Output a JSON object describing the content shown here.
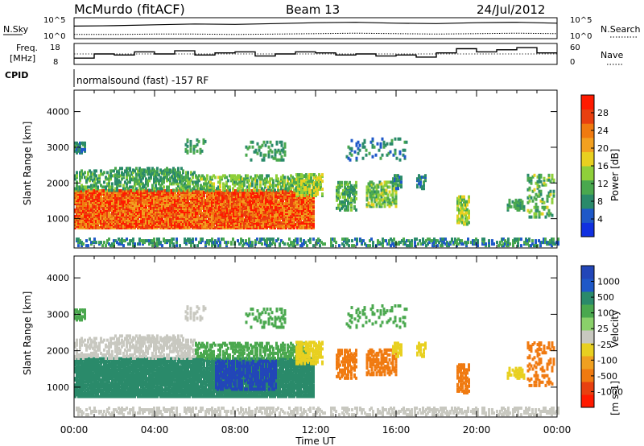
{
  "header": {
    "station": "McMurdo (fitACF)",
    "beam": "Beam 13",
    "date": "24/Jul/2012"
  },
  "panels": {
    "nsky_label": "N.Sky",
    "nsky_top": "10^5",
    "nsky_bottom": "10^0",
    "nsearch_label": "N.Search",
    "nsearch_top": "10^5",
    "nsearch_bottom": "10^0",
    "freq_label_1": "Freq.",
    "freq_label_2": "[MHz]",
    "freq_top": "18",
    "freq_bottom": "8",
    "nave_label": "Nave",
    "nave_top": "60",
    "nave_bottom": "0",
    "cpid_label": "CPID",
    "cpid_text": "normalsound (fast) -157 RF"
  },
  "colors": {
    "power": [
      "#1030e0",
      "#1e58c8",
      "#2a8a6a",
      "#4aa84e",
      "#8fcf3a",
      "#e8d020",
      "#f2a020",
      "#f07a10",
      "#e84010",
      "#ff1a00"
    ],
    "velocity": [
      "#2246b8",
      "#1e58c8",
      "#2a8a6a",
      "#4aa84e",
      "#8ad06a",
      "#c8c8c0",
      "#e8d020",
      "#f0a020",
      "#f07a10",
      "#e84010",
      "#ff1a00"
    ]
  },
  "chart_data": [
    {
      "type": "line",
      "name": "N.Sky / N.Search",
      "x": [
        0,
        2,
        4,
        6,
        8,
        10,
        12,
        14,
        16,
        18,
        20,
        22,
        24
      ],
      "series": [
        {
          "values": [
            3.0,
            3.1,
            3.3,
            3.5,
            3.4,
            3.6,
            3.8,
            3.9,
            3.7,
            3.6,
            3.8,
            3.9,
            3.7
          ]
        },
        {
          "values": [
            1.0,
            1.0,
            1.1,
            1.1,
            1.0,
            1.1,
            1.2,
            1.3,
            1.2,
            1.1,
            1.2,
            1.3,
            1.2
          ]
        }
      ],
      "ylim": [
        0,
        5
      ]
    },
    {
      "type": "line",
      "name": "Freq / Nave",
      "x": [
        0,
        1,
        2,
        3,
        4,
        5,
        6,
        7,
        8,
        9,
        10,
        11,
        12,
        13,
        14,
        15,
        16,
        17,
        18,
        19,
        20,
        21,
        22,
        23,
        24
      ],
      "series": [
        {
          "values": [
            11.0,
            13.0,
            12.5,
            14.0,
            13.0,
            14.5,
            12.5,
            13.5,
            14.0,
            12.0,
            13.0,
            14.0,
            13.5,
            12.5,
            13.0,
            12.0,
            12.5,
            11.5,
            13.5,
            15.5,
            14.0,
            15.0,
            16.0,
            13.5,
            14.0
          ]
        }
      ],
      "ylim": [
        8,
        18
      ]
    },
    {
      "type": "heatmap",
      "title": "Power",
      "xlabel": "",
      "ylabel": "Slant Range [km]",
      "xlim": [
        0,
        24
      ],
      "ylim": [
        180,
        4600
      ],
      "yticks": [
        1000,
        2000,
        3000,
        4000
      ],
      "colorbar_label": "Power [dB]",
      "colorbar_ticks": [
        "4",
        "8",
        "12",
        "16",
        "20",
        "24",
        "28"
      ],
      "colorbar_range": [
        0,
        30
      ]
    },
    {
      "type": "heatmap",
      "title": "Velocity",
      "xlabel": "Time UT",
      "ylabel": "Slant Range [km]",
      "xlim": [
        0,
        24
      ],
      "ylim": [
        180,
        4600
      ],
      "xticks": [
        "00:00",
        "04:00",
        "08:00",
        "12:00",
        "16:00",
        "20:00",
        "00:00"
      ],
      "yticks": [
        1000,
        2000,
        3000,
        4000
      ],
      "colorbar_label": "Velocity [m s-1]",
      "colorbar_ticks": [
        "1000",
        "500",
        "100",
        "25",
        "-25",
        "-100",
        "-500",
        "-1000"
      ]
    }
  ],
  "axis_labels": {
    "ylabel": "Slant Range [km]",
    "xlabel": "Time UT",
    "power_label": "Power [dB]",
    "velocity_label": "Velocity",
    "velocity_unit": "[m s-1]"
  }
}
